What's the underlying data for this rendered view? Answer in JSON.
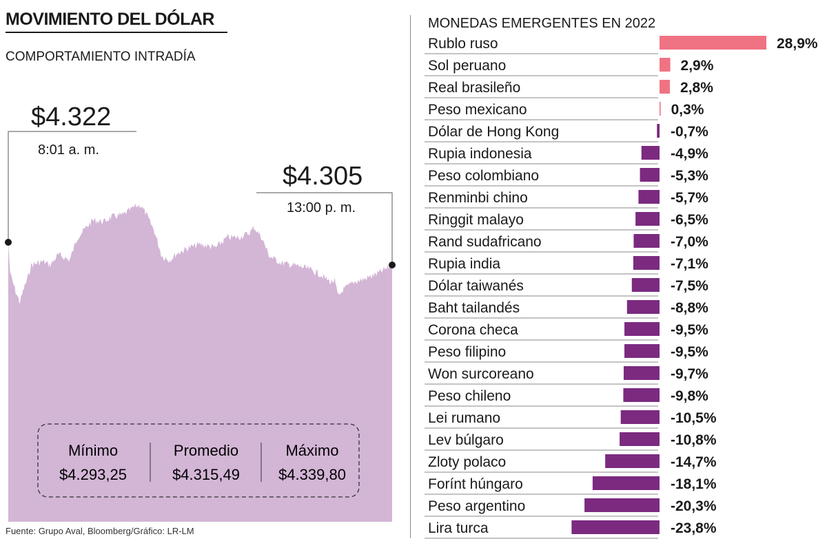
{
  "left_panel": {
    "title": "MOVIMIENTO DEL DÓLAR",
    "subtitle": "COMPORTAMIENTO INTRADÍA",
    "source": "Fuente: Grupo Aval, Bloomberg/Gráfico: LR-LM"
  },
  "colors": {
    "area_fill": "#d3b5d6",
    "positive_bar": "#f07383",
    "negative_bar": "#7b2a80"
  },
  "chart_data": [
    {
      "type": "area",
      "title": "",
      "x": [
        "8:01 a. m.",
        "13:00 p. m."
      ],
      "series": [
        {
          "start": 4322,
          "end": 4305
        }
      ],
      "annotations": [
        {
          "value": "$4.322",
          "time": "8:01 a. m."
        },
        {
          "value": "$4.305",
          "time": "13:00 p. m."
        }
      ],
      "stats": [
        {
          "label": "Mínimo",
          "value": "$4.293,25"
        },
        {
          "label": "Promedio",
          "value": "$4.315,49"
        },
        {
          "label": "Máximo",
          "value": "$4.339,80"
        }
      ],
      "ylim": [
        4293.25,
        4339.8
      ]
    },
    {
      "type": "bar",
      "title": "MONEDAS EMERGENTES EN 2022",
      "categories": [
        "Rublo ruso",
        "Sol peruano",
        "Real brasileño",
        "Peso mexicano",
        "Dólar de Hong Kong",
        "Rupia indonesia",
        "Peso colombiano",
        "Renminbi chino",
        "Ringgit malayo",
        "Rand sudafricano",
        "Rupia india",
        "Dólar taiwanés",
        "Baht tailandés",
        "Corona checa",
        "Peso filipino",
        "Won surcoreano",
        "Peso chileno",
        "Lei rumano",
        "Lev búlgaro",
        "Zloty polaco",
        "Forínt húngaro",
        "Peso argentino",
        "Lira turca"
      ],
      "values": [
        28.9,
        2.9,
        2.8,
        0.3,
        -0.7,
        -4.9,
        -5.3,
        -5.7,
        -6.5,
        -7.0,
        -7.1,
        -7.5,
        -8.8,
        -9.5,
        -9.5,
        -9.7,
        -9.8,
        -10.5,
        -10.8,
        -14.7,
        -18.1,
        -20.3,
        -23.8
      ],
      "labels": [
        "28,9%",
        "2,9%",
        "2,8%",
        "0,3%",
        "-0,7%",
        "-4,9%",
        "-5,3%",
        "-5,7%",
        "-6,5%",
        "-7,0%",
        "-7,1%",
        "-7,5%",
        "-8,8%",
        "-9,5%",
        "-9,5%",
        "-9,7%",
        "-9,8%",
        "-10,5%",
        "-10,8%",
        "-14,7%",
        "-18,1%",
        "-20,3%",
        "-23,8%"
      ]
    }
  ]
}
